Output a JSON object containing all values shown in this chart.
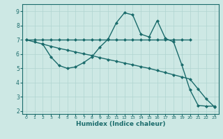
{
  "xlabel": "Humidex (Indice chaleur)",
  "bg_color": "#cde8e4",
  "grid_color": "#b0d5d0",
  "line_color": "#1a6b6b",
  "xlim": [
    -0.5,
    23.5
  ],
  "ylim": [
    1.8,
    9.5
  ],
  "yticks": [
    2,
    3,
    4,
    5,
    6,
    7,
    8,
    9
  ],
  "xticks": [
    0,
    1,
    2,
    3,
    4,
    5,
    6,
    7,
    8,
    9,
    10,
    11,
    12,
    13,
    14,
    15,
    16,
    17,
    18,
    19,
    20,
    21,
    22,
    23
  ],
  "line1_x": [
    0,
    1,
    2,
    3,
    4,
    5,
    6,
    7,
    8,
    9,
    10,
    11,
    12,
    13,
    14,
    15,
    16,
    17,
    18,
    19,
    20
  ],
  "line1_y": [
    7.0,
    7.0,
    7.0,
    7.0,
    7.0,
    7.0,
    7.0,
    7.0,
    7.0,
    7.0,
    7.0,
    7.0,
    7.0,
    7.0,
    7.0,
    7.0,
    7.0,
    7.0,
    7.0,
    7.0,
    7.0
  ],
  "line2_x": [
    2,
    3,
    4,
    5,
    6,
    7,
    8,
    9,
    10,
    11,
    12,
    13,
    14,
    15,
    16,
    17,
    18,
    19,
    20,
    21,
    22,
    23
  ],
  "line2_y": [
    6.7,
    5.8,
    5.2,
    5.0,
    5.1,
    5.4,
    5.8,
    6.5,
    7.05,
    8.2,
    8.9,
    8.75,
    7.4,
    7.2,
    8.35,
    7.1,
    6.85,
    5.25,
    3.5,
    2.4,
    2.35,
    2.35
  ],
  "line3_x": [
    0,
    1,
    2,
    3,
    4,
    5,
    6,
    7,
    8,
    9,
    10,
    11,
    12,
    13,
    14,
    15,
    16,
    17,
    18,
    19,
    20,
    21,
    22,
    23
  ],
  "line3_y": [
    7.0,
    6.85,
    6.7,
    6.55,
    6.4,
    6.28,
    6.15,
    6.02,
    5.9,
    5.75,
    5.62,
    5.5,
    5.37,
    5.25,
    5.12,
    5.0,
    4.85,
    4.7,
    4.55,
    4.4,
    4.25,
    3.55,
    2.85,
    2.3
  ]
}
